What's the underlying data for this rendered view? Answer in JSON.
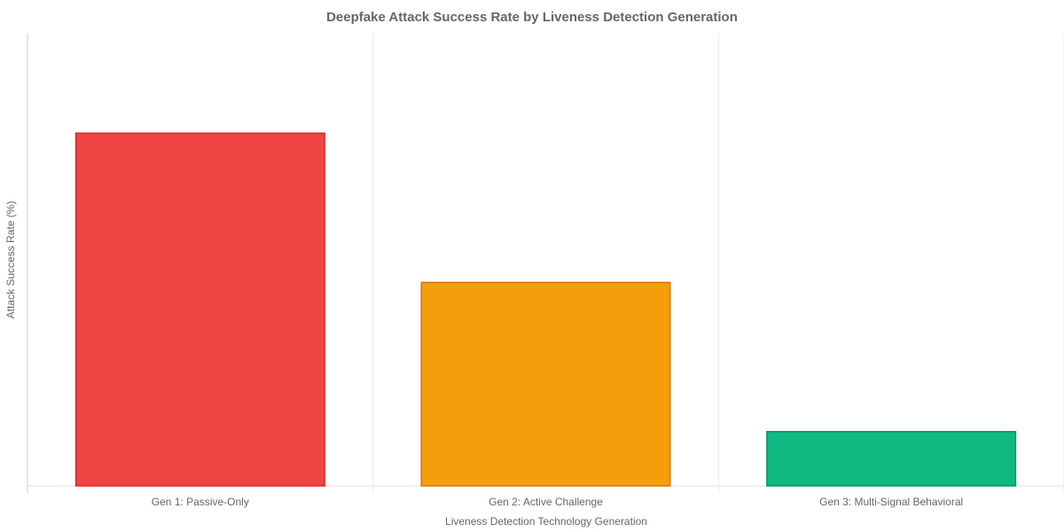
{
  "chart_data": {
    "type": "bar",
    "title": "Deepfake Attack Success Rate by Liveness Detection Generation",
    "xlabel": "Liveness Detection Technology Generation",
    "ylabel": "Attack Success Rate (%)",
    "categories": [
      "Gen 1: Passive-Only",
      "Gen 2: Active Challenge",
      "Gen 3: Multi-Signal Behavioral"
    ],
    "values": [
      78,
      45,
      12
    ],
    "ylim": [
      0,
      100
    ],
    "y_tick_labels_shown": false,
    "grid": "vertical",
    "colors": [
      "#ef4444",
      "#f59e0b",
      "#10b981"
    ],
    "border_colors": [
      "#dc2626",
      "#d97706",
      "#059669"
    ]
  }
}
